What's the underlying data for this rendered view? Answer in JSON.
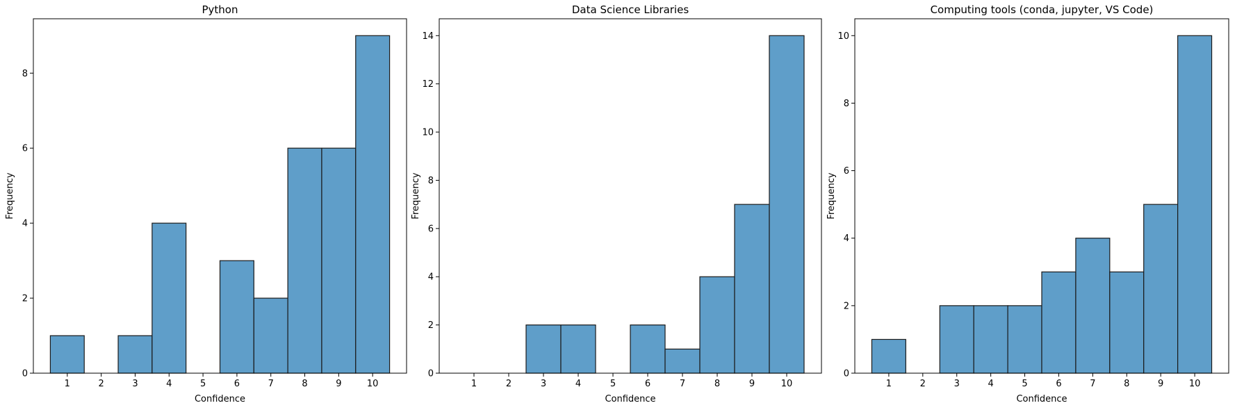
{
  "chart_data": [
    {
      "type": "bar",
      "title": "Python",
      "xlabel": "Confidence",
      "ylabel": "Frequency",
      "categories": [
        1,
        2,
        3,
        4,
        5,
        6,
        7,
        8,
        9,
        10
      ],
      "values": [
        1,
        0,
        1,
        4,
        0,
        3,
        2,
        6,
        6,
        9
      ],
      "xlim": [
        0.0,
        11.0
      ],
      "ylim": [
        0,
        9.45
      ],
      "yticks": [
        0,
        2,
        4,
        6,
        8
      ],
      "grid": false,
      "legend": "none"
    },
    {
      "type": "bar",
      "title": "Data Science Libraries",
      "xlabel": "Confidence",
      "ylabel": "Frequency",
      "categories": [
        1,
        2,
        3,
        4,
        5,
        6,
        7,
        8,
        9,
        10
      ],
      "values": [
        0,
        0,
        2,
        2,
        0,
        2,
        1,
        4,
        7,
        14
      ],
      "xlim": [
        0.0,
        11.0
      ],
      "ylim": [
        0,
        14.7
      ],
      "yticks": [
        0,
        2,
        4,
        6,
        8,
        10,
        12,
        14
      ],
      "grid": false,
      "legend": "none"
    },
    {
      "type": "bar",
      "title": "Computing tools (conda, jupyter, VS Code)",
      "xlabel": "Confidence",
      "ylabel": "Frequency",
      "categories": [
        1,
        2,
        3,
        4,
        5,
        6,
        7,
        8,
        9,
        10
      ],
      "values": [
        1,
        0,
        2,
        2,
        2,
        3,
        4,
        3,
        5,
        10
      ],
      "xlim": [
        0.0,
        11.0
      ],
      "ylim": [
        0,
        10.5
      ],
      "yticks": [
        0,
        2,
        4,
        6,
        8,
        10
      ],
      "grid": false,
      "legend": "none"
    }
  ],
  "colors": {
    "bar_fill": "#5f9ec9",
    "bar_edge": "#1a1a1a",
    "axis": "#000000",
    "background": "#ffffff"
  }
}
